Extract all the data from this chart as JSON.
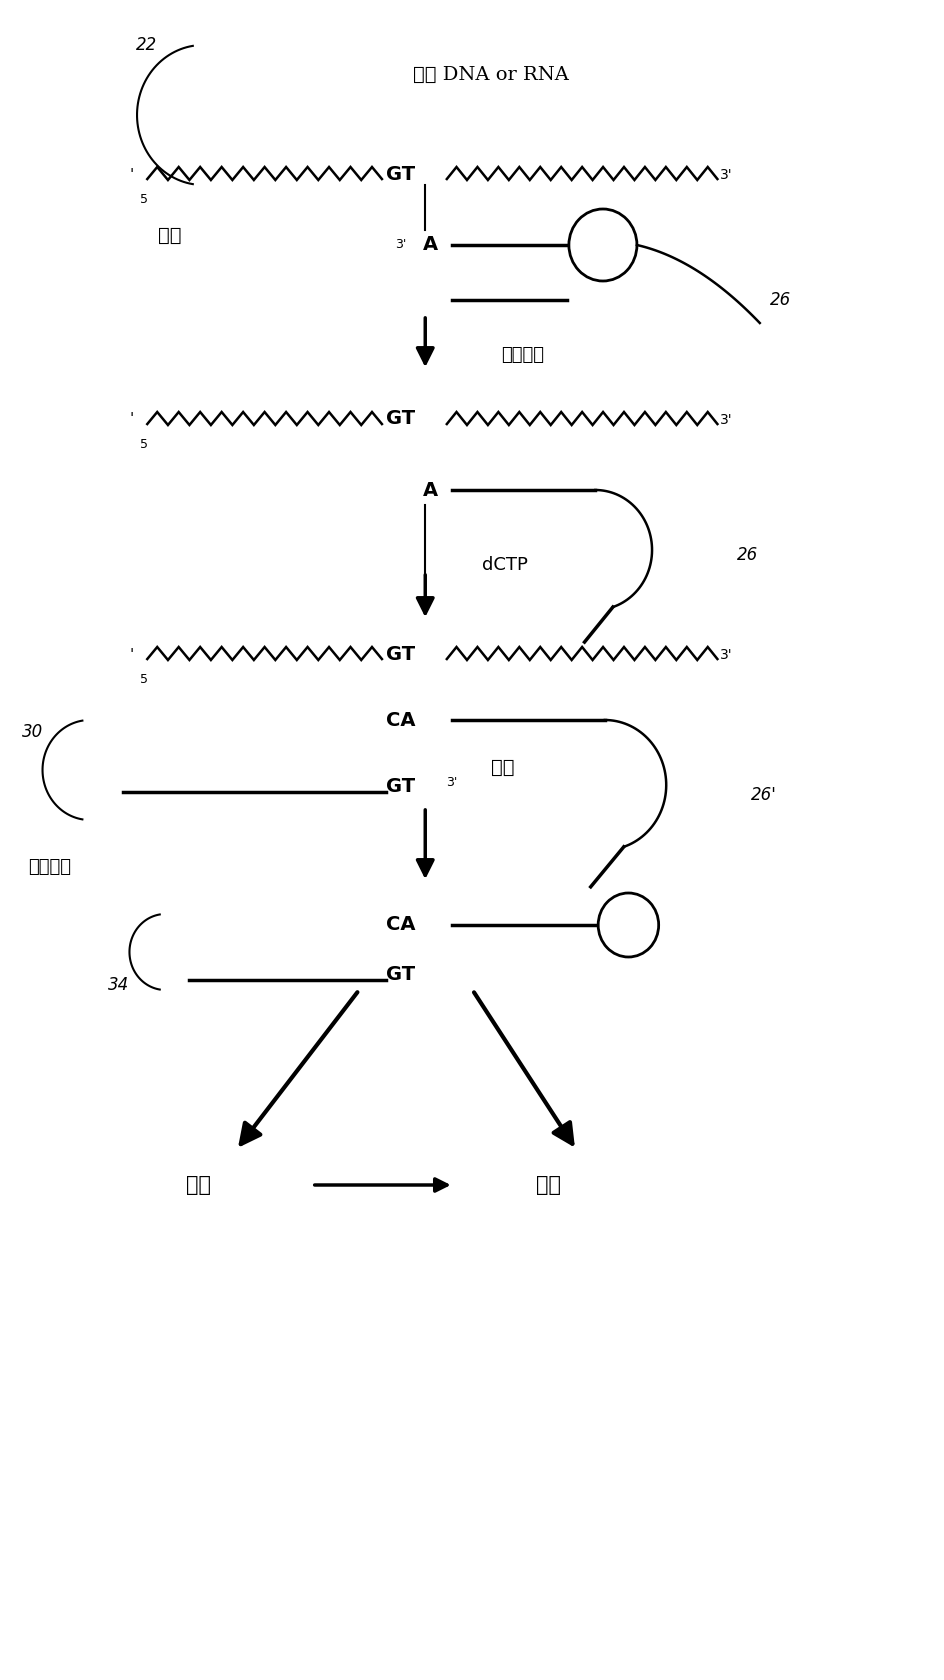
{
  "bg_color": "#ffffff",
  "text_color": "#000000",
  "fig_width": 9.45,
  "fig_height": 16.8,
  "label_22": "22",
  "label_target": "靶标 DNA or RNA",
  "label_hybridize": "杂交",
  "label_probe1": "靶标探针",
  "label_dctp": "dCTP",
  "label_30": "30",
  "label_26": "26",
  "label_26p": "26'",
  "label_connect": "连接",
  "label_detect_probe": "检测探针",
  "label_amplify": "扩增",
  "label_detect": "检测",
  "label_34": "34",
  "label_3prime": "3'",
  "label_A": "A",
  "label_GT": "GT",
  "label_CA": "CA",
  "label_GT3p": "GT"
}
